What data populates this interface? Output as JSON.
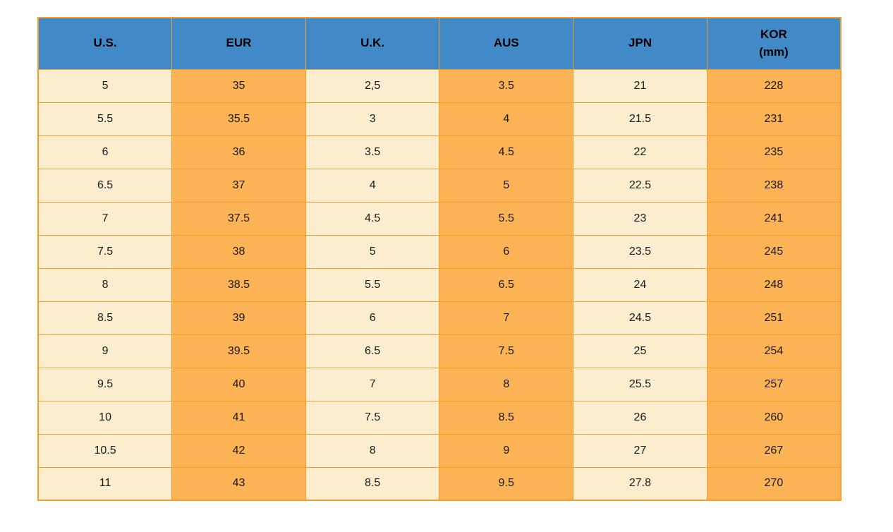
{
  "colors": {
    "header_bg": "#4189C7",
    "cell_light": "#FDEDCF",
    "cell_orange": "#FBB355",
    "border": "#F0A02E",
    "text": "#1A1A1A",
    "page_bg": "#FFFFFF"
  },
  "table": {
    "name": "shoe-size-conversion-table",
    "columns": [
      {
        "id": "us",
        "label": "U.S."
      },
      {
        "id": "eur",
        "label": "EUR"
      },
      {
        "id": "uk",
        "label": "U.K."
      },
      {
        "id": "aus",
        "label": "AUS"
      },
      {
        "id": "jpn",
        "label": "JPN"
      },
      {
        "id": "kor",
        "label": "KOR",
        "sub": "(mm)"
      }
    ],
    "rows": [
      [
        "5",
        "35",
        "2,5",
        "3.5",
        "21",
        "228"
      ],
      [
        "5.5",
        "35.5",
        "3",
        "4",
        "21.5",
        "231"
      ],
      [
        "6",
        "36",
        "3.5",
        "4.5",
        "22",
        "235"
      ],
      [
        "6.5",
        "37",
        "4",
        "5",
        "22.5",
        "238"
      ],
      [
        "7",
        "37.5",
        "4.5",
        "5.5",
        "23",
        "241"
      ],
      [
        "7.5",
        "38",
        "5",
        "6",
        "23.5",
        "245"
      ],
      [
        "8",
        "38.5",
        "5.5",
        "6.5",
        "24",
        "248"
      ],
      [
        "8.5",
        "39",
        "6",
        "7",
        "24.5",
        "251"
      ],
      [
        "9",
        "39.5",
        "6.5",
        "7.5",
        "25",
        "254"
      ],
      [
        "9.5",
        "40",
        "7",
        "8",
        "25.5",
        "257"
      ],
      [
        "10",
        "41",
        "7.5",
        "8.5",
        "26",
        "260"
      ],
      [
        "10.5",
        "42",
        "8",
        "9",
        "27",
        "267"
      ],
      [
        "11",
        "43",
        "8.5",
        "9.5",
        "27.8",
        "270"
      ]
    ]
  }
}
